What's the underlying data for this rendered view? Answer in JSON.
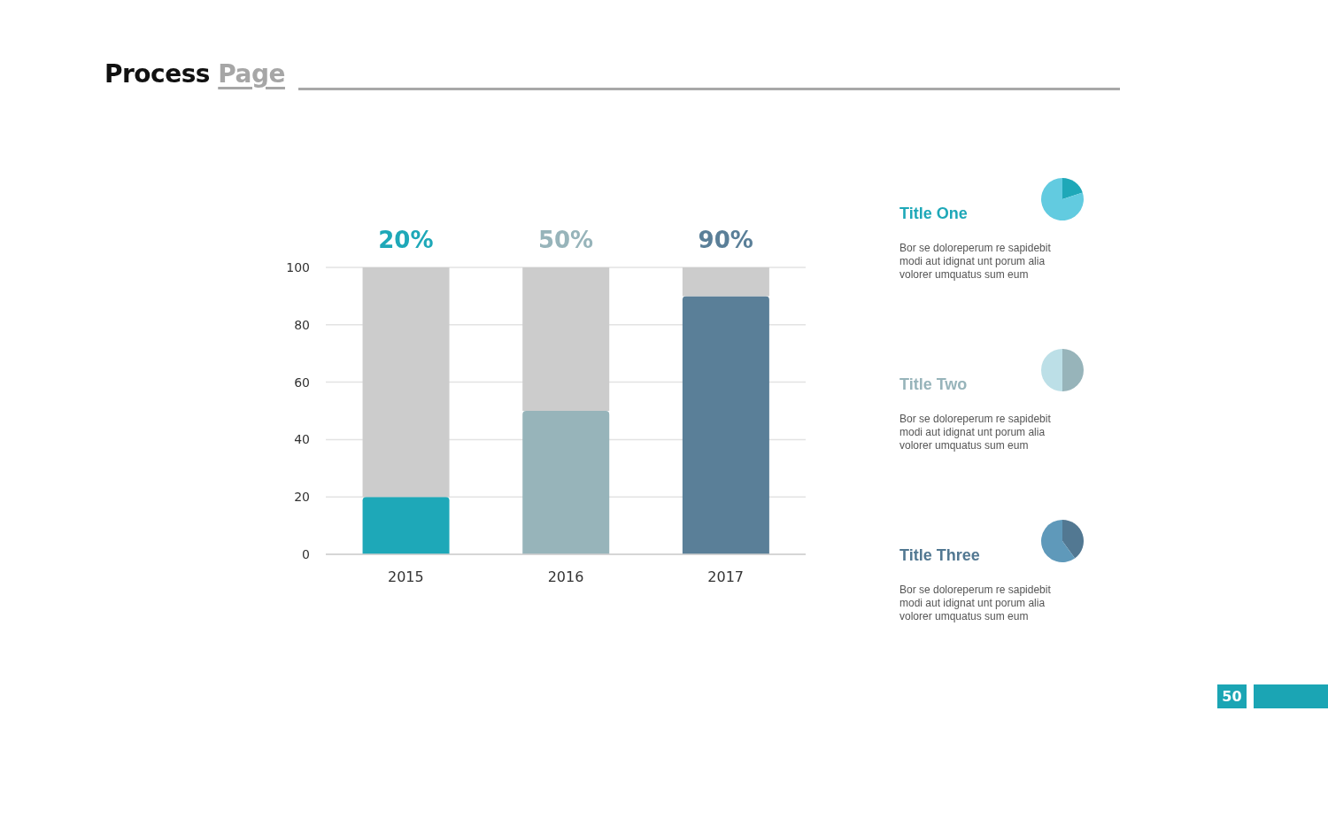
{
  "chart_data": [
    {
      "type": "bar",
      "title": "Process Page",
      "categories": [
        "2015",
        "2016",
        "2017"
      ],
      "stacked": true,
      "series": [
        {
          "values": [
            20,
            50,
            90
          ],
          "colors": [
            "#1ea8b8",
            "#97b4ba",
            "#5a7f98"
          ]
        },
        {
          "values": [
            80,
            50,
            10
          ],
          "color": "#cccccc"
        }
      ],
      "ylim": [
        0,
        100
      ],
      "yticks": [
        0,
        20,
        40,
        60,
        80,
        100
      ],
      "grid": "y",
      "annotations": [
        {
          "text": "20%",
          "x": "2015",
          "y": 100
        },
        {
          "text": "50%",
          "x": "2016",
          "y": 100
        },
        {
          "text": "90%",
          "x": "2017",
          "y": 100
        },
        "50"
      ]
    },
    {
      "type": "pie",
      "title": "Title One",
      "categories": [
        null,
        null
      ],
      "values": [
        20,
        80
      ],
      "colors": [
        "#1ea8b8",
        "#62cbe0"
      ],
      "annotations": [
        "Bor se doloreperum re sapidebit modi aut idignat unt porum alia volorer umquatus sum eum"
      ]
    },
    {
      "type": "pie",
      "title": "Title Two",
      "categories": [
        null,
        null
      ],
      "values": [
        50,
        50
      ],
      "colors": [
        "#97b4ba",
        "#bcdfe7"
      ],
      "annotations": [
        "Bor se doloreperum re sapidebit modi aut idignat unt porum alia volorer umquatus sum eum"
      ]
    },
    {
      "type": "pie",
      "title": "Title Three",
      "categories": [
        null,
        null
      ],
      "values": [
        40,
        60
      ],
      "colors": [
        "#527892",
        "#5f99ba"
      ],
      "annotations": [
        "Bor se doloreperum re sapidebit modi aut idignat unt porum alia volorer umquatus sum eum"
      ]
    }
  ]
}
